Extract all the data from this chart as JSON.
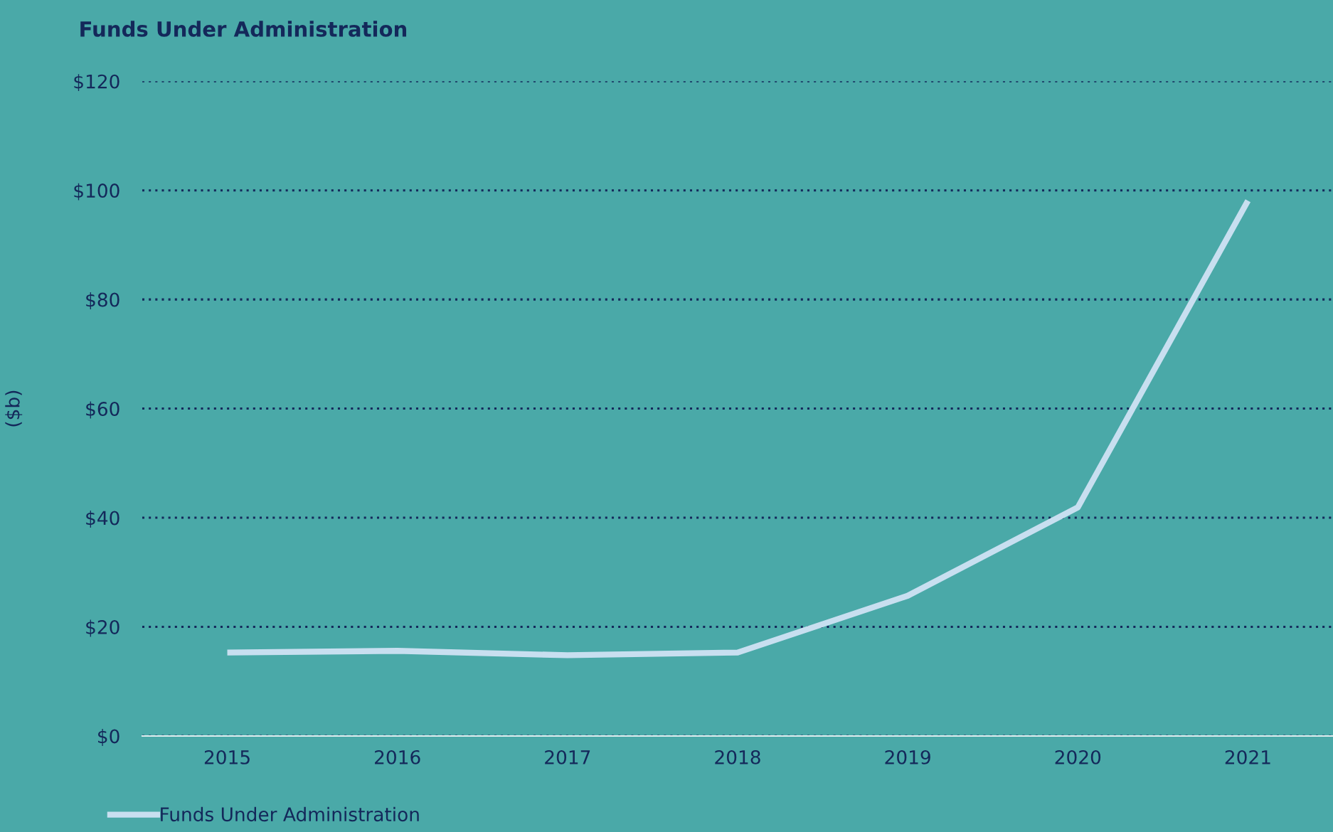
{
  "chart_data": {
    "type": "line",
    "title": "Funds Under Administration",
    "ylabel": "($b)",
    "categories": [
      "2015",
      "2016",
      "2017",
      "2018",
      "2019",
      "2020",
      "2021"
    ],
    "series": [
      {
        "name": "Funds Under Administration",
        "color": "#c8dff0",
        "values": [
          15.3,
          15.6,
          14.8,
          15.3,
          25.7,
          41.9,
          98.1
        ]
      }
    ],
    "ylim": [
      0,
      120
    ],
    "yticks": [
      {
        "value": 0,
        "label": "$0"
      },
      {
        "value": 20,
        "label": "$20"
      },
      {
        "value": 40,
        "label": "$40"
      },
      {
        "value": 60,
        "label": "$60"
      },
      {
        "value": 80,
        "label": "$80"
      },
      {
        "value": 100,
        "label": "$100"
      },
      {
        "value": 120,
        "label": "$120"
      }
    ],
    "grid": "y",
    "legend": "bottom left",
    "marker": "none",
    "line_style": "solid"
  }
}
